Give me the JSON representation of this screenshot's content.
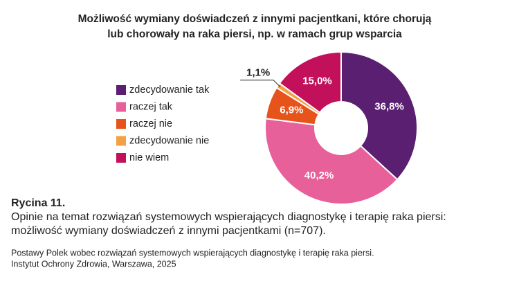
{
  "chart_data": {
    "type": "donut",
    "title": [
      "Możliwość wymiany doświadczeń z innymi pacjentkani, które chorują",
      "lub chorowały na raka piersi, np. w ramach grup wsparcia"
    ],
    "categories": [
      "zdecydowanie tak",
      "raczej tak",
      "raczej nie",
      "zdecydowanie nie",
      "nie wiem"
    ],
    "values": [
      36.8,
      40.2,
      6.9,
      1.1,
      15.0
    ],
    "value_labels": [
      "36,8%",
      "40,2%",
      "6,9%",
      "1,1%",
      "15,0%"
    ],
    "colors": [
      "#5b1f72",
      "#e8609a",
      "#e7541b",
      "#f5a043",
      "#c2105b"
    ]
  },
  "figure_label": "Rycina 11.",
  "caption": [
    "Opinie na temat rozwiązań systemowych wspierających diagnostykę i terapię raka piersi:",
    "możliwość wymiany doświadczeń z innymi pacjentkami (n=707)."
  ],
  "source": [
    "Postawy Polek wobec rozwiązań systemowych wspierających diagnostykę i terapię raka piersi.",
    "Instytut Ochrony Zdrowia, Warszawa, 2025"
  ]
}
